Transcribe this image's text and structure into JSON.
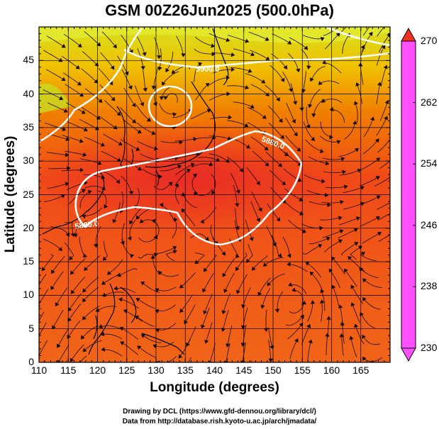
{
  "title": "GSM 00Z26Jun2025 (500.0hPa)",
  "x_axis": {
    "label": "Longitude (degrees)",
    "ticks": [
      "110",
      "115",
      "120",
      "125",
      "130",
      "135",
      "140",
      "145",
      "150",
      "155",
      "160",
      "165"
    ]
  },
  "y_axis": {
    "label": "Latitude  (degrees)",
    "ticks": [
      "45",
      "40",
      "35",
      "30",
      "25",
      "20",
      "15",
      "10",
      "5",
      "0"
    ]
  },
  "map": {
    "lon_range": [
      110,
      170
    ],
    "lat_range": [
      0,
      50
    ],
    "grid_step_deg": 5
  },
  "contours": [
    {
      "label": "5900.0",
      "value": 5900
    },
    {
      "label": "5880.0",
      "value": 5880
    },
    {
      "label": "5880.0",
      "value": 5880
    }
  ],
  "colorbar": {
    "ticks": [
      "270",
      "262",
      "254",
      "246",
      "238",
      "230"
    ],
    "range": [
      230,
      270
    ],
    "colors": [
      "#ff50ff",
      "#c000c0",
      "#3030d0",
      "#0070ff",
      "#00c8ff",
      "#00d080",
      "#30c800",
      "#a0e000",
      "#f0f000",
      "#ffb000",
      "#ff6000",
      "#f03020"
    ]
  },
  "credits": {
    "line1": "Drawing by DCL (https://www.gfd-dennou.org/library/dcl/)",
    "line2": "Data from http://database.rish.kyoto-u.ac.jp/arch/jmadata/"
  }
}
